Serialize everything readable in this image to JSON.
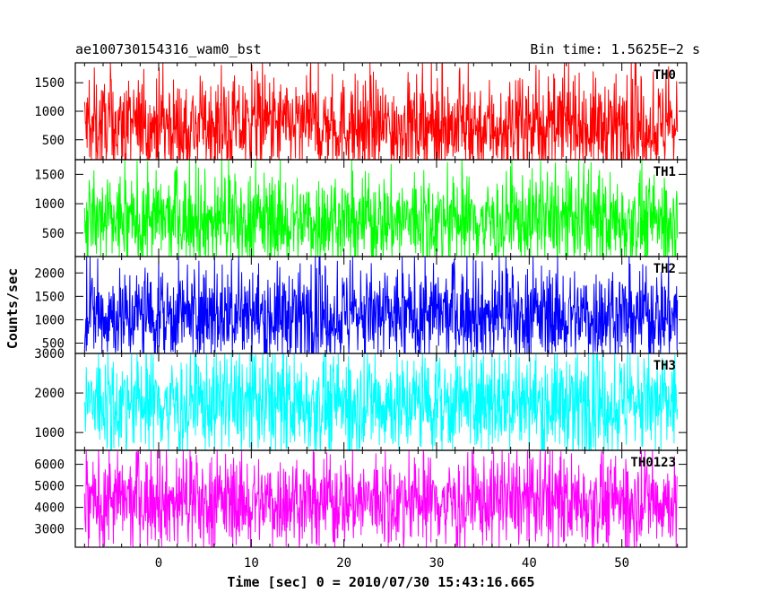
{
  "header": {
    "left_title": "ae100730154316_wam0_bst",
    "right_title": "Bin time: 1.5625E−2 s"
  },
  "axes": {
    "xlabel": "Time [sec] 0 = 2010/07/30 15:43:16.665",
    "ylabel": "Counts/sec"
  },
  "chart_data": {
    "type": "line",
    "title": "ae100730154316_wam0_bst",
    "subtitle": "Bin time: 1.5625E−2 s",
    "xlabel": "Time [sec] 0 = 2010/07/30 15:43:16.665",
    "ylabel": "Counts/sec",
    "xlim": [
      -9,
      57
    ],
    "x_ticks": [
      0,
      10,
      20,
      30,
      40,
      50
    ],
    "x_range_data": [
      -8,
      56
    ],
    "bin_time_s": 0.015625,
    "grid": false,
    "legend": "none",
    "panels": [
      {
        "name": "TH0",
        "color": "#ff0000",
        "ylim": [
          150,
          1850
        ],
        "yticks": [
          500,
          1000,
          1500
        ],
        "mean": 740,
        "typical_low": 280,
        "typical_high": 1200,
        "peak": 1850,
        "trough": 150
      },
      {
        "name": "TH1",
        "color": "#00ff00",
        "ylim": [
          100,
          1750
        ],
        "yticks": [
          500,
          1000,
          1500
        ],
        "mean": 720,
        "typical_low": 300,
        "typical_high": 1150,
        "peak": 1750,
        "trough": 100
      },
      {
        "name": "TH2",
        "color": "#0000ff",
        "ylim": [
          280,
          2350
        ],
        "yticks": [
          500,
          1000,
          1500,
          2000
        ],
        "mean": 1110,
        "typical_low": 550,
        "typical_high": 1650,
        "peak": 2350,
        "trough": 280
      },
      {
        "name": "TH3",
        "color": "#00ffff",
        "ylim": [
          550,
          3000
        ],
        "yticks": [
          1000,
          2000,
          3000
        ],
        "mean": 1750,
        "typical_low": 1050,
        "typical_high": 2450,
        "peak": 3000,
        "trough": 550
      },
      {
        "name": "TH0123",
        "color": "#ff00ff",
        "ylim": [
          2150,
          6650
        ],
        "yticks": [
          3000,
          4000,
          5000,
          6000
        ],
        "mean": 4300,
        "typical_low": 3150,
        "typical_high": 5450,
        "peak": 6650,
        "trough": 2150
      }
    ]
  }
}
